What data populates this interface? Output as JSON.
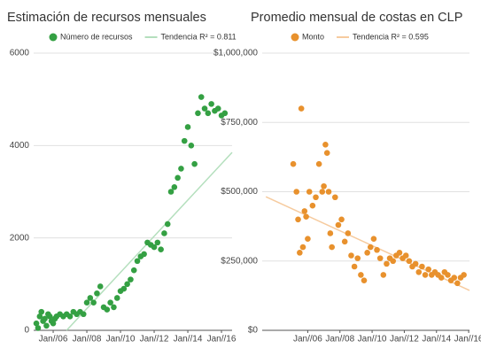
{
  "chart_data": [
    {
      "type": "scatter",
      "title": "Estimación de recursos mensuales",
      "xlim": [
        2004.84,
        2016.63
      ],
      "ylim": [
        0,
        6000
      ],
      "yticks": [
        0,
        2000,
        4000,
        6000
      ],
      "xticks": [
        {
          "value": 2006,
          "label": "Jan//06"
        },
        {
          "value": 2008,
          "label": "Jan//08"
        },
        {
          "value": 2010,
          "label": "Jan//10"
        },
        {
          "value": 2012,
          "label": "Jan//12"
        },
        {
          "value": 2014,
          "label": "Jan//14"
        },
        {
          "value": 2016,
          "label": "Jan//16"
        }
      ],
      "grid": true,
      "legend": "top",
      "series": [
        {
          "name": "Número de recursos",
          "color": "#34a043",
          "mark": "scatter",
          "x": [
            2005.0,
            2005.1,
            2005.2,
            2005.3,
            2005.4,
            2005.5,
            2005.6,
            2005.7,
            2005.8,
            2005.9,
            2006.0,
            2006.1,
            2006.2,
            2006.4,
            2006.6,
            2006.8,
            2007.0,
            2007.2,
            2007.4,
            2007.6,
            2007.8,
            2008.0,
            2008.2,
            2008.4,
            2008.6,
            2008.8,
            2009.0,
            2009.2,
            2009.4,
            2009.6,
            2009.8,
            2010.0,
            2010.2,
            2010.4,
            2010.6,
            2010.8,
            2011.0,
            2011.2,
            2011.4,
            2011.6,
            2011.8,
            2012.0,
            2012.2,
            2012.4,
            2012.6,
            2012.8,
            2013.0,
            2013.2,
            2013.4,
            2013.6,
            2013.8,
            2014.0,
            2014.2,
            2014.4,
            2014.6,
            2014.8,
            2015.0,
            2015.2,
            2015.4,
            2015.6,
            2015.8,
            2016.0,
            2016.2
          ],
          "values": [
            150,
            50,
            300,
            400,
            200,
            250,
            100,
            350,
            300,
            200,
            150,
            250,
            300,
            350,
            300,
            350,
            300,
            400,
            350,
            400,
            350,
            600,
            700,
            600,
            800,
            950,
            500,
            450,
            600,
            500,
            700,
            850,
            900,
            1000,
            1100,
            1300,
            1500,
            1600,
            1650,
            1900,
            1850,
            1800,
            1900,
            1750,
            2100,
            2300,
            3000,
            3100,
            3300,
            3500,
            4100,
            4400,
            4000,
            3600,
            4700,
            5050,
            4800,
            4700,
            4900,
            4750,
            4800,
            4650,
            4700
          ]
        },
        {
          "name": "Tendencia R² = 0.811",
          "color": "#b4dfbd",
          "mark": "line",
          "x": [
            2006.8,
            2016.63
          ],
          "values": [
            0,
            3850
          ]
        }
      ]
    },
    {
      "type": "scatter",
      "title": "Promedio mensual de costas en CLP",
      "xlim": [
        2003.17,
        2016.05
      ],
      "ylim": [
        0,
        1000000
      ],
      "yticks": [
        {
          "value": 0,
          "label": "$0"
        },
        {
          "value": 250000,
          "label": "$250,000"
        },
        {
          "value": 500000,
          "label": "$500,000"
        },
        {
          "value": 750000,
          "label": "$750,000"
        },
        {
          "value": 1000000,
          "label": "$1,000,000"
        }
      ],
      "xticks": [
        {
          "value": 2006,
          "label": "Jan//06"
        },
        {
          "value": 2008,
          "label": "Jan//08"
        },
        {
          "value": 2010,
          "label": "Jan//10"
        },
        {
          "value": 2012,
          "label": "Jan//12"
        },
        {
          "value": 2014,
          "label": "Jan//14"
        },
        {
          "value": 2016,
          "label": "Jan//16"
        }
      ],
      "grid": true,
      "legend": "top",
      "series": [
        {
          "name": "Monto",
          "color": "#e8912d",
          "mark": "scatter",
          "x": [
            2005.1,
            2005.3,
            2005.4,
            2005.5,
            2005.6,
            2005.7,
            2005.8,
            2005.9,
            2006.0,
            2006.1,
            2006.3,
            2006.5,
            2006.7,
            2006.9,
            2007.0,
            2007.1,
            2007.2,
            2007.3,
            2007.4,
            2007.5,
            2007.7,
            2007.9,
            2008.1,
            2008.3,
            2008.5,
            2008.7,
            2008.9,
            2009.1,
            2009.3,
            2009.5,
            2009.7,
            2009.9,
            2010.1,
            2010.3,
            2010.5,
            2010.7,
            2010.9,
            2011.1,
            2011.3,
            2011.5,
            2011.7,
            2011.9,
            2012.1,
            2012.3,
            2012.5,
            2012.7,
            2012.9,
            2013.1,
            2013.3,
            2013.5,
            2013.7,
            2013.9,
            2014.1,
            2014.3,
            2014.5,
            2014.7,
            2014.9,
            2015.1,
            2015.3,
            2015.5,
            2015.7
          ],
          "values": [
            600000,
            500000,
            400000,
            280000,
            800000,
            300000,
            430000,
            410000,
            330000,
            500000,
            450000,
            480000,
            600000,
            500000,
            520000,
            670000,
            640000,
            500000,
            350000,
            300000,
            480000,
            380000,
            400000,
            320000,
            350000,
            270000,
            230000,
            260000,
            200000,
            180000,
            280000,
            300000,
            330000,
            290000,
            260000,
            200000,
            240000,
            260000,
            250000,
            270000,
            280000,
            260000,
            270000,
            250000,
            230000,
            240000,
            210000,
            230000,
            200000,
            220000,
            200000,
            210000,
            200000,
            190000,
            210000,
            200000,
            180000,
            190000,
            170000,
            190000,
            200000
          ]
        },
        {
          "name": "Tendencia R² = 0.595",
          "color": "#f6cb9f",
          "mark": "line",
          "x": [
            2003.4,
            2016.05
          ],
          "values": [
            482000,
            144000
          ]
        }
      ]
    }
  ]
}
